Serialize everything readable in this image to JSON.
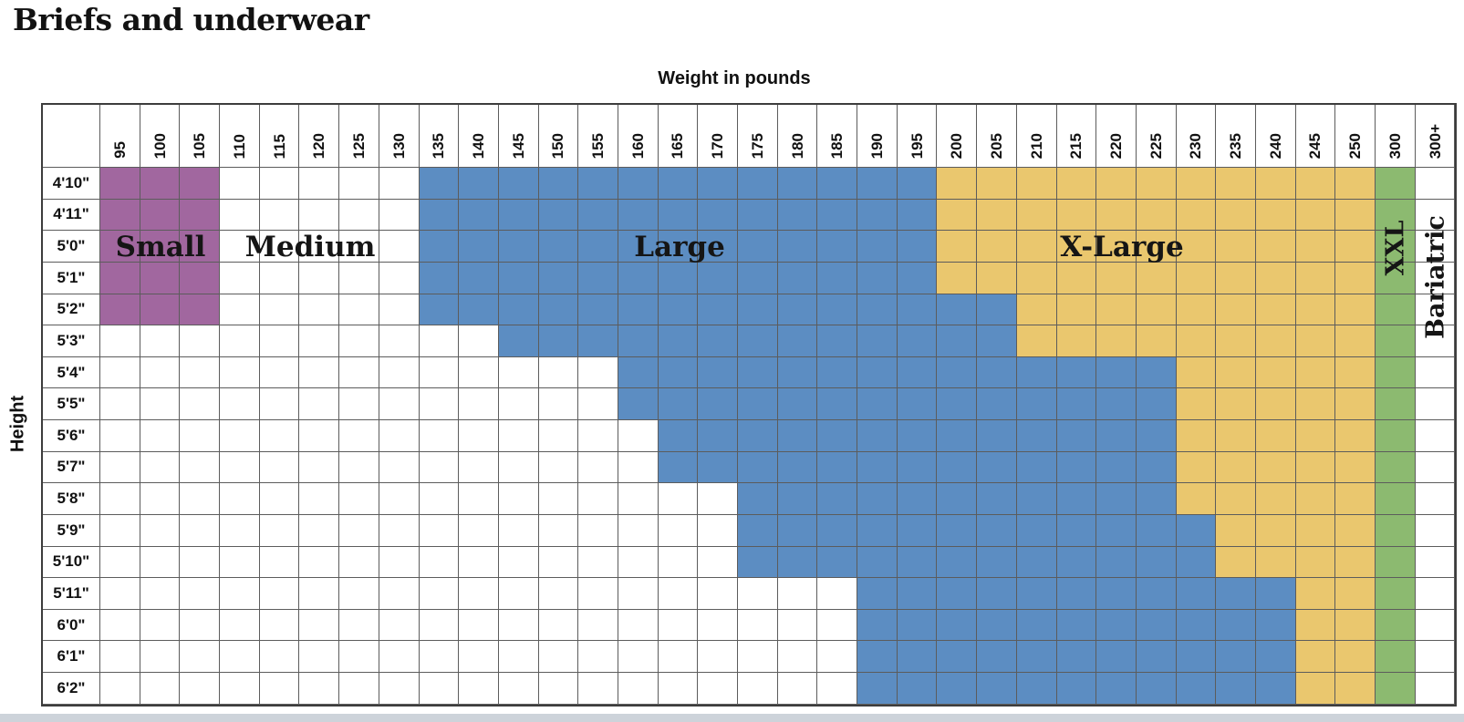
{
  "title": "Briefs and underwear",
  "weight_axis_label": "Weight in pounds",
  "height_axis_label": "Height",
  "chart_data": {
    "type": "heatmap",
    "title": "Briefs and underwear",
    "xlabel": "Weight in pounds",
    "ylabel": "Height",
    "columns": [
      "95",
      "100",
      "105",
      "110",
      "115",
      "120",
      "125",
      "130",
      "135",
      "140",
      "145",
      "150",
      "155",
      "160",
      "165",
      "170",
      "175",
      "180",
      "185",
      "190",
      "195",
      "200",
      "205",
      "210",
      "215",
      "220",
      "225",
      "230",
      "235",
      "240",
      "245",
      "250",
      "300",
      "300+"
    ],
    "cell_codes": {
      "S": "Small",
      "W": "Medium / unshaded",
      "L": "Large",
      "X": "X-Large",
      "G": "XXL",
      "B": "Bariatric"
    },
    "colors": {
      "S": "#a1679f",
      "W": "#ffffff",
      "L": "#5c8dc2",
      "X": "#eac76e",
      "G": "#8cba70",
      "B": "#ffffff"
    },
    "rows": [
      {
        "label": "4'10\"",
        "cells": "SSSWWWWWLLLLLLLLLLLLLXXXXXXXXXXXGB"
      },
      {
        "label": "4'11\"",
        "cells": "SSSWWWWWLLLLLLLLLLLLLXXXXXXXXXXXGB"
      },
      {
        "label": "5'0\"",
        "cells": "SSSWWWWWLLLLLLLLLLLLLXXXXXXXXXXXGB"
      },
      {
        "label": "5'1\"",
        "cells": "SSSWWWWWLLLLLLLLLLLLLXXXXXXXXXXXGB"
      },
      {
        "label": "5'2\"",
        "cells": "SSSWWWWWLLLLLLLLLLLLLLLXXXXXXXXXGB"
      },
      {
        "label": "5'3\"",
        "cells": "WWWWWWWWWWLLLLLLLLLLLLLXXXXXXXXXGB"
      },
      {
        "label": "5'4\"",
        "cells": "WWWWWWWWWWWWWLLLLLLLLLLLLLLXXXXXGB"
      },
      {
        "label": "5'5\"",
        "cells": "WWWWWWWWWWWWWLLLLLLLLLLLLLLXXXXXGB"
      },
      {
        "label": "5'6\"",
        "cells": "WWWWWWWWWWWWWWLLLLLLLLLLLLLXXXXXGB"
      },
      {
        "label": "5'7\"",
        "cells": "WWWWWWWWWWWWWWLLLLLLLLLLLLLXXXXXGB"
      },
      {
        "label": "5'8\"",
        "cells": "WWWWWWWWWWWWWWWWLLLLLLLLLLLXXXXXGB"
      },
      {
        "label": "5'9\"",
        "cells": "WWWWWWWWWWWWWWWWLLLLLLLLLLLLXXXXGB"
      },
      {
        "label": "5'10\"",
        "cells": "WWWWWWWWWWWWWWWWLLLLLLLLLLLLXXXXGB"
      },
      {
        "label": "5'11\"",
        "cells": "WWWWWWWWWWWWWWWWWWWLLLLLLLLLLLXXGB"
      },
      {
        "label": "6'0\"",
        "cells": "WWWWWWWWWWWWWWWWWWWLLLLLLLLLLLXXGB"
      },
      {
        "label": "6'1\"",
        "cells": "WWWWWWWWWWWWWWWWWWWLLLLLLLLLLLXXGB"
      },
      {
        "label": "6'2\"",
        "cells": "WWWWWWWWWWWWWWWWWWWLLLLLLLLLLLXXGB"
      }
    ],
    "region_labels": {
      "small": "Small",
      "medium": "Medium",
      "large": "Large",
      "xlarge": "X-Large",
      "xxl": "XXL",
      "bariatric": "Bariatric"
    }
  }
}
